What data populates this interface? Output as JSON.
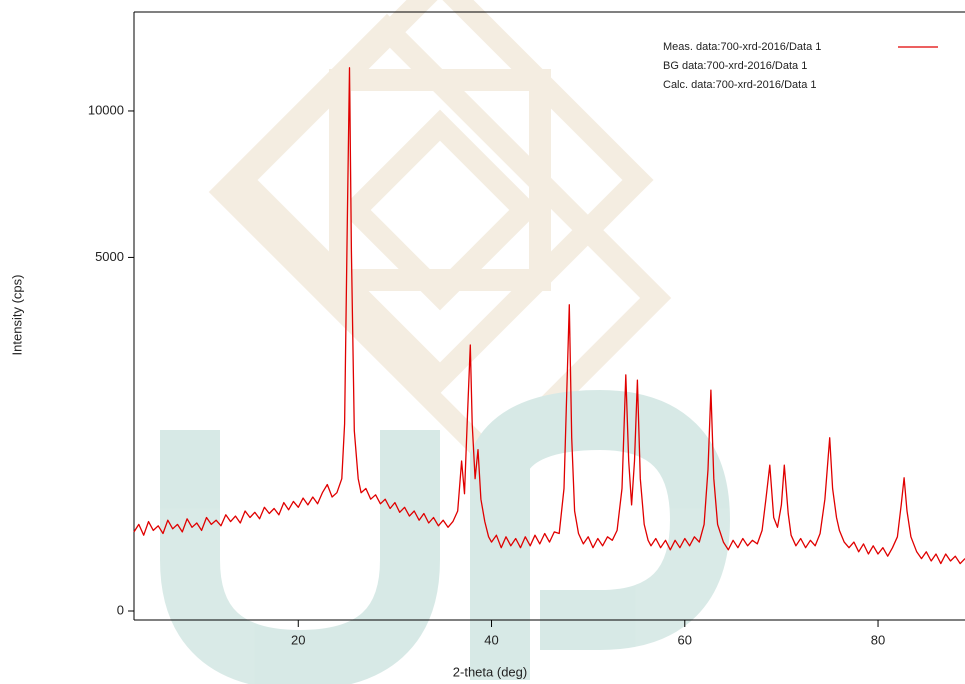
{
  "chart_data": {
    "type": "line",
    "xlabel": "2-theta (deg)",
    "ylabel": "Intensity (cps)",
    "xlim": [
      3,
      89
    ],
    "xticks": [
      20,
      40,
      60,
      80
    ],
    "ylim": [
      0,
      14350
    ],
    "yticks": [
      0,
      5000,
      10000
    ],
    "yscale": "sqrt",
    "x": [
      3,
      3.5,
      4,
      4.5,
      5,
      5.5,
      6,
      6.5,
      7,
      7.5,
      8,
      8.5,
      9,
      9.5,
      10,
      10.5,
      11,
      11.5,
      12,
      12.5,
      13,
      13.5,
      14,
      14.5,
      15,
      15.5,
      16,
      16.5,
      17,
      17.5,
      18,
      18.5,
      19,
      19.5,
      20,
      20.5,
      21,
      21.5,
      22,
      22.5,
      23,
      23.5,
      24,
      24.5,
      24.8,
      25.1,
      25.3,
      25.5,
      25.8,
      26.2,
      26.5,
      27,
      27.5,
      28,
      28.5,
      29,
      29.5,
      30,
      30.5,
      31,
      31.5,
      32,
      32.5,
      33,
      33.5,
      34,
      34.5,
      35,
      35.5,
      36,
      36.5,
      36.9,
      37.2,
      37.5,
      37.8,
      38,
      38.3,
      38.6,
      38.9,
      39.3,
      39.7,
      40,
      40.5,
      41,
      41.5,
      42,
      42.5,
      43,
      43.5,
      44,
      44.5,
      45,
      45.5,
      46,
      46.5,
      47,
      47.5,
      47.8,
      48.05,
      48.3,
      48.6,
      49,
      49.5,
      50,
      50.5,
      51,
      51.5,
      52,
      52.5,
      53,
      53.5,
      53.9,
      54.2,
      54.5,
      54.8,
      55.1,
      55.4,
      55.8,
      56.2,
      56.5,
      57,
      57.5,
      58,
      58.5,
      59,
      59.5,
      60,
      60.5,
      61,
      61.5,
      62,
      62.4,
      62.7,
      63,
      63.4,
      64,
      64.5,
      65,
      65.5,
      66,
      66.5,
      67,
      67.5,
      68,
      68.4,
      68.8,
      69.2,
      69.6,
      70,
      70.3,
      70.7,
      71,
      71.5,
      72,
      72.5,
      73,
      73.5,
      74,
      74.5,
      75,
      75.3,
      75.7,
      76,
      76.5,
      77,
      77.5,
      78,
      78.5,
      79,
      79.5,
      80,
      80.5,
      81,
      81.5,
      82,
      82.4,
      82.7,
      83,
      83.4,
      84,
      84.5,
      85,
      85.5,
      86,
      86.5,
      87,
      87.5,
      88,
      88.5,
      89
    ],
    "series": [
      {
        "name": "Meas. data:700-xrd-2016/Data 1",
        "color": "#e00000",
        "values": [
          250,
          300,
          230,
          320,
          260,
          290,
          240,
          330,
          270,
          300,
          250,
          340,
          280,
          310,
          260,
          350,
          300,
          330,
          290,
          370,
          320,
          360,
          310,
          400,
          350,
          390,
          340,
          430,
          380,
          420,
          370,
          470,
          410,
          480,
          430,
          510,
          450,
          520,
          460,
          560,
          640,
          520,
          560,
          700,
          1400,
          6500,
          11800,
          5200,
          1300,
          700,
          560,
          600,
          500,
          540,
          460,
          500,
          420,
          470,
          390,
          430,
          360,
          400,
          330,
          380,
          310,
          350,
          290,
          330,
          280,
          320,
          400,
          900,
          550,
          1500,
          2830,
          1400,
          700,
          1040,
          500,
          320,
          220,
          190,
          230,
          160,
          220,
          170,
          210,
          160,
          220,
          170,
          230,
          180,
          240,
          190,
          250,
          240,
          600,
          2000,
          3750,
          1200,
          400,
          240,
          180,
          220,
          160,
          210,
          170,
          220,
          200,
          260,
          600,
          2230,
          900,
          450,
          900,
          2130,
          700,
          300,
          200,
          170,
          210,
          160,
          200,
          150,
          200,
          160,
          210,
          170,
          220,
          190,
          300,
          800,
          1950,
          700,
          300,
          190,
          150,
          200,
          160,
          210,
          170,
          200,
          180,
          260,
          500,
          850,
          350,
          280,
          450,
          850,
          380,
          230,
          170,
          210,
          160,
          200,
          170,
          240,
          500,
          1200,
          600,
          350,
          260,
          190,
          160,
          190,
          140,
          180,
          130,
          170,
          130,
          160,
          120,
          160,
          220,
          450,
          710,
          400,
          220,
          140,
          110,
          140,
          100,
          130,
          90,
          130,
          100,
          120,
          90,
          110
        ]
      }
    ],
    "other_legend_entries": [
      "BG data:700-xrd-2016/Data 1",
      "Calc. data:700-xrd-2016/Data 1"
    ]
  }
}
